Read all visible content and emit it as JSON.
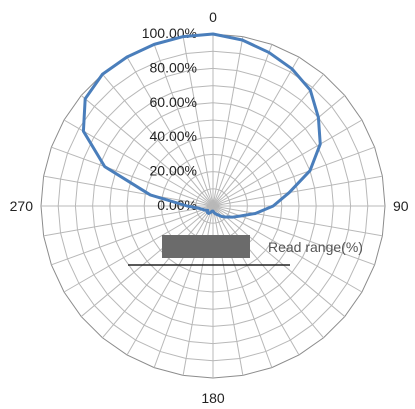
{
  "chart_data": {
    "type": "polar-line",
    "angular_ticks": [
      "0",
      "90",
      "180",
      "270"
    ],
    "radial_ticks": [
      "0.00%",
      "20.00%",
      "40.00%",
      "60.00%",
      "80.00%",
      "100.00%"
    ],
    "radial_range": [
      0,
      100
    ],
    "angular_step_deg": 10,
    "grid": true,
    "legend": {
      "label": "Read range(%)",
      "placement": "center-bottom"
    },
    "series": [
      {
        "name": "Read range(%)",
        "color": "#4a7ebb",
        "angles_deg": [
          0,
          10,
          20,
          30,
          40,
          50,
          60,
          70,
          80,
          90,
          100,
          110,
          120,
          130,
          140,
          150,
          160,
          170,
          180,
          190,
          200,
          210,
          220,
          230,
          240,
          250,
          260,
          270,
          280,
          290,
          300,
          310,
          320,
          330,
          340,
          350
        ],
        "values": [
          100,
          98,
          95,
          92,
          88,
          80,
          72,
          60,
          45,
          35,
          25,
          17,
          13,
          10,
          8,
          6,
          5,
          4,
          3,
          3,
          4,
          5,
          5,
          4,
          5,
          6,
          8,
          15,
          37,
          67,
          87,
          97,
          100,
          100,
          100,
          100
        ]
      }
    ]
  }
}
